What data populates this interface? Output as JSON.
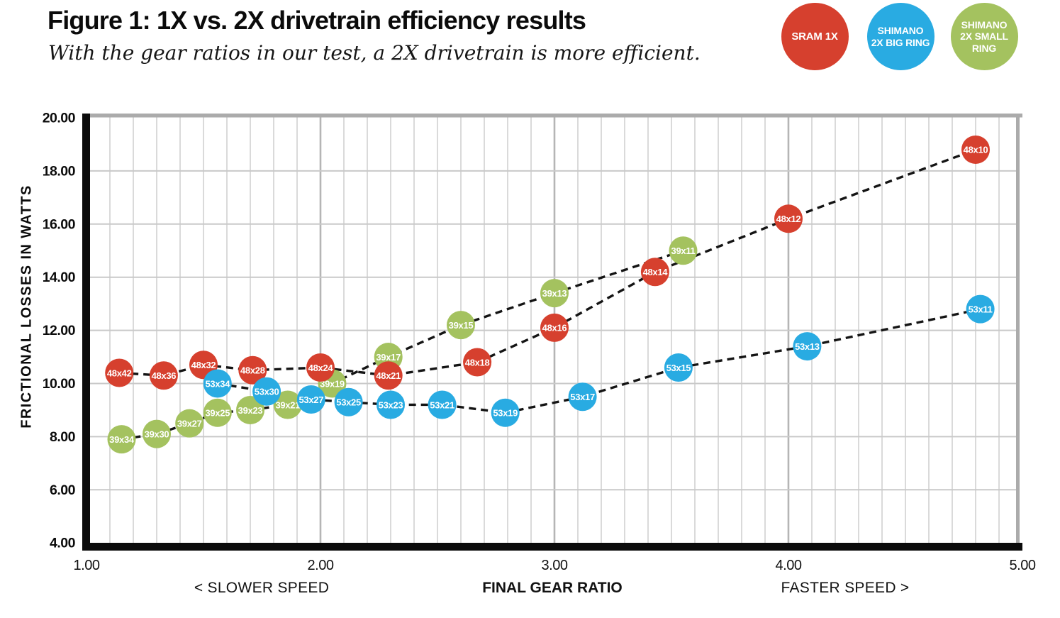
{
  "figure": {
    "title": "Figure 1: 1X vs. 2X drivetrain efficiency results",
    "subtitle": "With the gear ratios in our test, a 2X drivetrain is more efficient."
  },
  "legend": [
    {
      "label": "SRAM 1X",
      "lines": [
        "SRAM 1X"
      ],
      "color": "#D6402E"
    },
    {
      "label": "SHIMANO 2X BIG RING",
      "lines": [
        "SHIMANO",
        "2X BIG RING"
      ],
      "color": "#29ABE2"
    },
    {
      "label": "SHIMANO 2X SMALL RING",
      "lines": [
        "SHIMANO",
        "2X SMALL",
        "RING"
      ],
      "color": "#A4C25F"
    }
  ],
  "chart_data": {
    "type": "scatter",
    "title": "Figure 1: 1X vs. 2X drivetrain efficiency results",
    "line_style": "dashed-black",
    "grid": "minor vertical every 0.1 ratio, major vertical every 1.0, horizontal every 2 watts",
    "x_axis": {
      "title": "FINAL GEAR RATIO",
      "caption_left": "< SLOWER SPEED",
      "caption_right": "FASTER SPEED >",
      "tick_labels": [
        "1.00",
        "2.00",
        "3.00",
        "4.00",
        "5.00"
      ],
      "tick_values": [
        1,
        2,
        3,
        4,
        5
      ],
      "range": [
        1,
        5
      ],
      "minor_grid_step": 0.1,
      "major_grid_step": 1
    },
    "y_axis": {
      "title": "FRICTIONAL LOSSES IN WATTS",
      "tick_labels": [
        "20.00",
        "18.00",
        "16.00",
        "14.00",
        "12.00",
        "10.00",
        "8.00",
        "6.00",
        "4.00"
      ],
      "tick_values": [
        20,
        18,
        16,
        14,
        12,
        10,
        8,
        6,
        4
      ],
      "range": [
        4,
        20
      ],
      "grid_step": 2
    },
    "series": [
      {
        "name": "SRAM 1X",
        "color": "#D6402E",
        "points": [
          {
            "label": "48x42",
            "ratio": 1.14,
            "watts": 10.4
          },
          {
            "label": "48x36",
            "ratio": 1.33,
            "watts": 10.3
          },
          {
            "label": "48x32",
            "ratio": 1.5,
            "watts": 10.7
          },
          {
            "label": "48x28",
            "ratio": 1.71,
            "watts": 10.5
          },
          {
            "label": "48x24",
            "ratio": 2.0,
            "watts": 10.6
          },
          {
            "label": "48x21",
            "ratio": 2.29,
            "watts": 10.3
          },
          {
            "label": "48x18",
            "ratio": 2.67,
            "watts": 10.8
          },
          {
            "label": "48x16",
            "ratio": 3.0,
            "watts": 12.1
          },
          {
            "label": "48x14",
            "ratio": 3.43,
            "watts": 14.2
          },
          {
            "label": "48x12",
            "ratio": 4.0,
            "watts": 16.2
          },
          {
            "label": "48x10",
            "ratio": 4.8,
            "watts": 18.8
          }
        ]
      },
      {
        "name": "SHIMANO 2X BIG RING",
        "color": "#29ABE2",
        "points": [
          {
            "label": "53x34",
            "ratio": 1.56,
            "watts": 10.0
          },
          {
            "label": "53x30",
            "ratio": 1.77,
            "watts": 9.7
          },
          {
            "label": "53x27",
            "ratio": 1.96,
            "watts": 9.4
          },
          {
            "label": "53x25",
            "ratio": 2.12,
            "watts": 9.3
          },
          {
            "label": "53x23",
            "ratio": 2.3,
            "watts": 9.2
          },
          {
            "label": "53x21",
            "ratio": 2.52,
            "watts": 9.2
          },
          {
            "label": "53x19",
            "ratio": 2.79,
            "watts": 8.9
          },
          {
            "label": "53x17",
            "ratio": 3.12,
            "watts": 9.5
          },
          {
            "label": "53x15",
            "ratio": 3.53,
            "watts": 10.6
          },
          {
            "label": "53x13",
            "ratio": 4.08,
            "watts": 11.4
          },
          {
            "label": "53x11",
            "ratio": 4.82,
            "watts": 12.8
          }
        ]
      },
      {
        "name": "SHIMANO 2X SMALL RING",
        "color": "#A4C25F",
        "points": [
          {
            "label": "39x34",
            "ratio": 1.15,
            "watts": 7.9
          },
          {
            "label": "39x30",
            "ratio": 1.3,
            "watts": 8.1
          },
          {
            "label": "39x27",
            "ratio": 1.44,
            "watts": 8.5
          },
          {
            "label": "39x25",
            "ratio": 1.56,
            "watts": 8.9
          },
          {
            "label": "39x23",
            "ratio": 1.7,
            "watts": 9.0
          },
          {
            "label": "39x21",
            "ratio": 1.86,
            "watts": 9.2
          },
          {
            "label": "39x19",
            "ratio": 2.05,
            "watts": 10.0
          },
          {
            "label": "39x17",
            "ratio": 2.29,
            "watts": 11.0
          },
          {
            "label": "39x15",
            "ratio": 2.6,
            "watts": 12.2
          },
          {
            "label": "39x13",
            "ratio": 3.0,
            "watts": 13.4
          },
          {
            "label": "39x11",
            "ratio": 3.55,
            "watts": 15.0
          }
        ]
      }
    ]
  }
}
